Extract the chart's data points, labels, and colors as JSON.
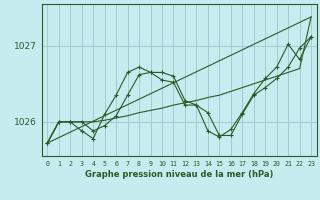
{
  "title": "Graphe pression niveau de la mer (hPa)",
  "background_color": "#c5ecee",
  "grid_color": "#9ecdd4",
  "line_color": "#2d5a27",
  "xlim": [
    -0.5,
    23.5
  ],
  "ylim_min": 1025.55,
  "ylim_max": 1027.55,
  "yticks": [
    1026,
    1027
  ],
  "hours": [
    0,
    1,
    2,
    3,
    4,
    5,
    6,
    7,
    8,
    9,
    10,
    11,
    12,
    13,
    14,
    15,
    16,
    17,
    18,
    19,
    20,
    21,
    22,
    23
  ],
  "curve1": [
    1025.72,
    1026.0,
    1026.0,
    1026.0,
    1025.88,
    1025.95,
    1026.08,
    1026.35,
    1026.62,
    1026.65,
    1026.55,
    1026.52,
    1026.22,
    1026.22,
    1026.12,
    1025.82,
    1025.82,
    1026.1,
    1026.35,
    1026.45,
    1026.57,
    1026.72,
    1026.97,
    1027.12
  ],
  "curve2": [
    1025.72,
    1026.0,
    1026.0,
    1025.88,
    1025.78,
    1026.1,
    1026.35,
    1026.65,
    1026.72,
    1026.65,
    1026.65,
    1026.6,
    1026.28,
    1026.22,
    1025.88,
    1025.8,
    1025.9,
    1026.12,
    1026.37,
    1026.57,
    1026.72,
    1027.02,
    1026.82,
    1027.12
  ],
  "trend_x": [
    0,
    23
  ],
  "trend_y": [
    1025.72,
    1027.38
  ],
  "smooth_x": [
    0,
    1,
    2,
    3,
    4,
    5,
    6,
    7,
    8,
    9,
    10,
    11,
    12,
    13,
    14,
    15,
    16,
    17,
    18,
    19,
    20,
    21,
    22,
    23
  ],
  "smooth_y": [
    1025.72,
    1026.0,
    1026.0,
    1026.0,
    1026.0,
    1026.02,
    1026.05,
    1026.08,
    1026.12,
    1026.15,
    1026.18,
    1026.22,
    1026.25,
    1026.28,
    1026.32,
    1026.35,
    1026.4,
    1026.45,
    1026.5,
    1026.55,
    1026.6,
    1026.65,
    1026.7,
    1027.38
  ]
}
